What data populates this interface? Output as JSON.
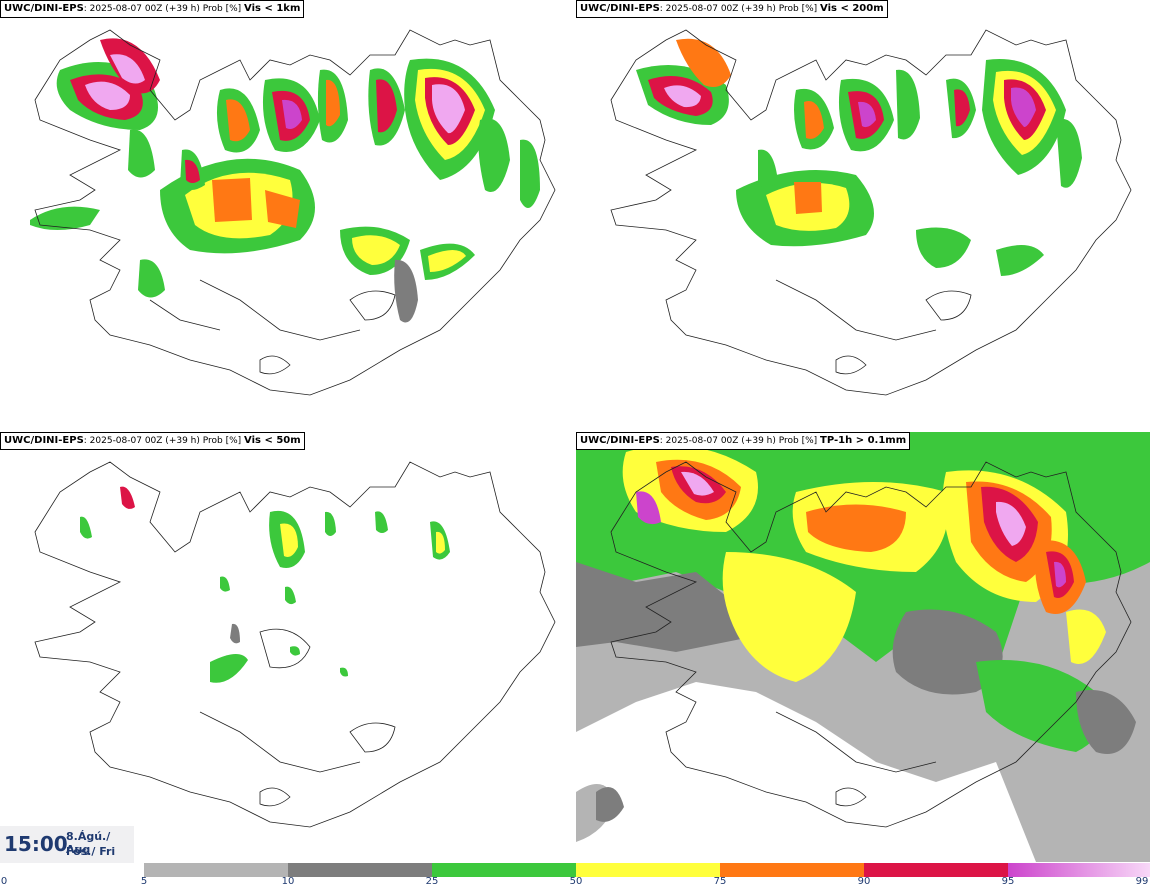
{
  "panels": [
    {
      "model": "UWC/DINI-EPS",
      "info": ": 2025-08-07 00Z (+39 h) Prob [%]",
      "threshold": "Vis < 1km"
    },
    {
      "model": "UWC/DINI-EPS",
      "info": ": 2025-08-07 00Z (+39 h) Prob [%]",
      "threshold": "Vis < 200m"
    },
    {
      "model": "UWC/DINI-EPS",
      "info": ": 2025-08-07 00Z (+39 h) Prob [%]",
      "threshold": "Vis < 50m"
    },
    {
      "model": "UWC/DINI-EPS",
      "info": ": 2025-08-07 00Z (+39 h) Prob [%]",
      "threshold": "TP-1h > 0.1mm"
    }
  ],
  "time": {
    "clock": "15:00",
    "date_line": "8.Ágú./ Aug",
    "day_line": "Fös./ Fri"
  },
  "colorbar": {
    "ticks": [
      "0",
      "5",
      "10",
      "25",
      "50",
      "75",
      "90",
      "95",
      "99"
    ],
    "colors": [
      "#ffffff",
      "#b4b4b4",
      "#7d7d7d",
      "#3cc83c",
      "#ffff3c",
      "#ff7814",
      "#dc1446",
      "#cc44cc"
    ]
  },
  "palette": {
    "gray_light": "#b4b4b4",
    "gray_dark": "#7d7d7d",
    "green": "#3cc83c",
    "yellow": "#ffff3c",
    "orange": "#ff7814",
    "red": "#dc1446",
    "magenta": "#cc44cc",
    "pink": "#f0a8f0"
  }
}
